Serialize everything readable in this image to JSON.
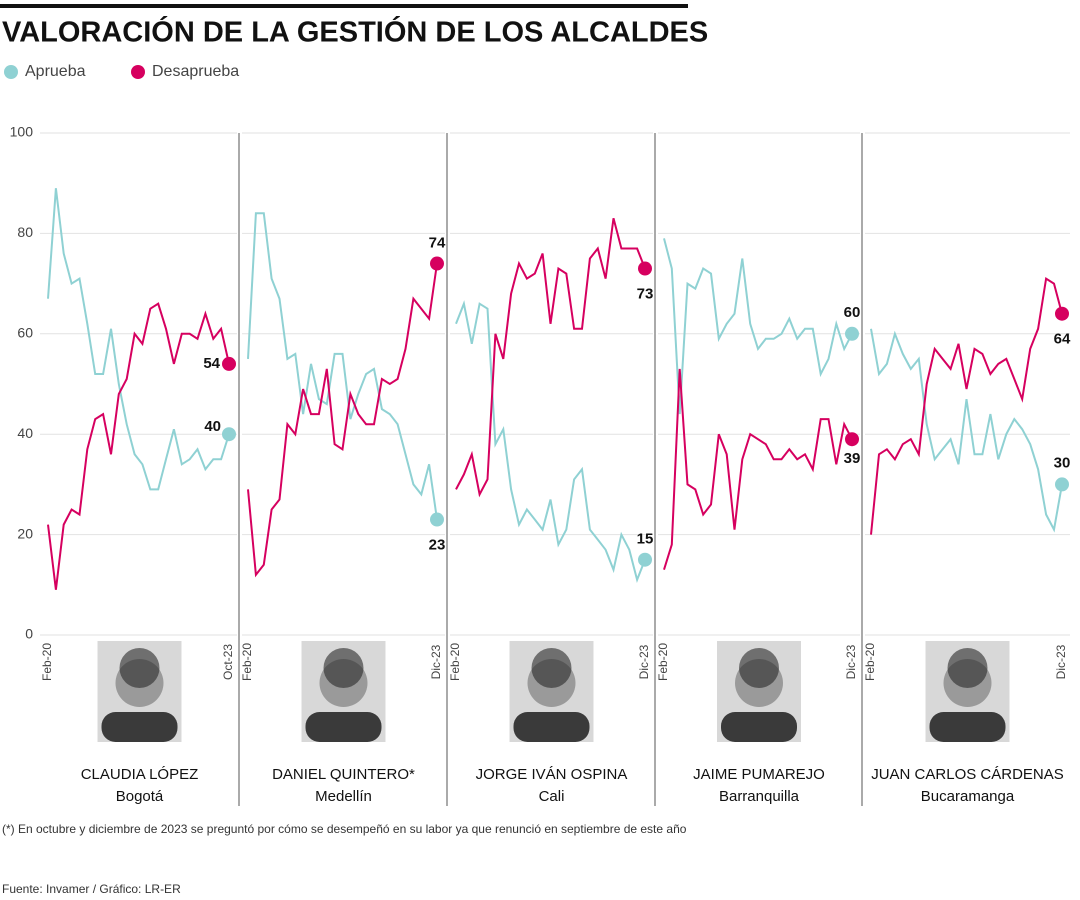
{
  "title": "VALORACIÓN DE LA GESTIÓN DE LOS ALCALDES",
  "footnote": "(*) En octubre y diciembre de 2023 se preguntó por cómo se desempeñó en su labor ya que renunció en septiembre de este año",
  "source": "Fuente: Invamer / Gráfico: LR-ER",
  "chart_data": [
    {
      "type": "line",
      "title": "CLAUDIA LÓPEZ",
      "subtitle": "Bogotá",
      "x": [
        "Feb-20",
        null,
        null,
        null,
        null,
        null,
        null,
        null,
        null,
        null,
        null,
        null,
        null,
        null,
        null,
        null,
        null,
        null,
        null,
        null,
        null,
        null,
        null,
        "Oct-23"
      ],
      "series": [
        {
          "name": "Aprueba",
          "color": "#8fd1d3",
          "values": [
            67,
            89,
            76,
            70,
            71,
            62,
            52,
            52,
            61,
            50,
            42,
            36,
            34,
            29,
            29,
            35,
            41,
            34,
            35,
            37,
            33,
            35,
            35,
            40
          ]
        },
        {
          "name": "Desaprueba",
          "color": "#d6005f",
          "values": [
            22,
            9,
            22,
            25,
            24,
            37,
            43,
            44,
            36,
            48,
            51,
            60,
            58,
            65,
            66,
            61,
            54,
            60,
            60,
            59,
            64,
            59,
            61,
            54
          ]
        }
      ],
      "ylim": [
        0,
        100
      ],
      "yticks": [
        0,
        20,
        40,
        60,
        80,
        100
      ],
      "grid": true
    },
    {
      "type": "line",
      "title": "DANIEL QUINTERO*",
      "subtitle": "Medellín",
      "x": [
        "Feb-20",
        null,
        null,
        null,
        null,
        null,
        null,
        null,
        null,
        null,
        null,
        null,
        null,
        null,
        null,
        null,
        null,
        null,
        null,
        null,
        null,
        null,
        null,
        null,
        "Dic-23"
      ],
      "series": [
        {
          "name": "Aprueba",
          "color": "#8fd1d3",
          "values": [
            55,
            84,
            84,
            71,
            67,
            55,
            56,
            44,
            54,
            47,
            46,
            56,
            56,
            43,
            48,
            52,
            53,
            45,
            44,
            42,
            36,
            30,
            28,
            34,
            23
          ]
        },
        {
          "name": "Desaprueba",
          "color": "#d6005f",
          "values": [
            29,
            12,
            14,
            25,
            27,
            42,
            40,
            49,
            44,
            44,
            53,
            38,
            37,
            48,
            44,
            42,
            42,
            51,
            50,
            51,
            57,
            67,
            65,
            63,
            74
          ]
        }
      ],
      "ylim": [
        0,
        100
      ],
      "yticks": [
        0,
        20,
        40,
        60,
        80,
        100
      ],
      "grid": true
    },
    {
      "type": "line",
      "title": "JORGE IVÁN OSPINA",
      "subtitle": "Cali",
      "x": [
        "Feb-20",
        null,
        null,
        null,
        null,
        null,
        null,
        null,
        null,
        null,
        null,
        null,
        null,
        null,
        null,
        null,
        null,
        null,
        null,
        null,
        null,
        null,
        null,
        null,
        "Dic-23"
      ],
      "series": [
        {
          "name": "Aprueba",
          "color": "#8fd1d3",
          "values": [
            62,
            66,
            58,
            66,
            65,
            38,
            41,
            29,
            22,
            25,
            23,
            21,
            27,
            18,
            21,
            31,
            33,
            21,
            19,
            17,
            13,
            20,
            17,
            11,
            15
          ]
        },
        {
          "name": "Desaprueba",
          "color": "#d6005f",
          "values": [
            29,
            32,
            36,
            28,
            31,
            60,
            55,
            68,
            74,
            71,
            72,
            76,
            62,
            73,
            72,
            61,
            61,
            75,
            77,
            71,
            83,
            77,
            77,
            77,
            73
          ]
        }
      ],
      "ylim": [
        0,
        100
      ],
      "yticks": [
        0,
        20,
        40,
        60,
        80,
        100
      ],
      "grid": true
    },
    {
      "type": "line",
      "title": "JAIME PUMAREJO",
      "subtitle": "Barranquilla",
      "x": [
        "Feb-20",
        null,
        null,
        null,
        null,
        null,
        null,
        null,
        null,
        null,
        null,
        null,
        null,
        null,
        null,
        null,
        null,
        null,
        null,
        null,
        null,
        null,
        null,
        null,
        "Dic-23"
      ],
      "series": [
        {
          "name": "Aprueba",
          "color": "#8fd1d3",
          "values": [
            79,
            73,
            44,
            70,
            69,
            73,
            72,
            59,
            62,
            64,
            75,
            62,
            57,
            59,
            59,
            60,
            63,
            59,
            61,
            61,
            52,
            55,
            62,
            57,
            60
          ]
        },
        {
          "name": "Desaprueba",
          "color": "#d6005f",
          "values": [
            13,
            18,
            53,
            30,
            29,
            24,
            26,
            40,
            36,
            21,
            35,
            40,
            39,
            38,
            35,
            35,
            37,
            35,
            36,
            33,
            43,
            43,
            34,
            42,
            39
          ]
        }
      ],
      "ylim": [
        0,
        100
      ],
      "yticks": [
        0,
        20,
        40,
        60,
        80,
        100
      ],
      "grid": true
    },
    {
      "type": "line",
      "title": "JUAN CARLOS CÁRDENAS",
      "subtitle": "Bucaramanga",
      "x": [
        "Feb-20",
        null,
        null,
        null,
        null,
        null,
        null,
        null,
        null,
        null,
        null,
        null,
        null,
        null,
        null,
        null,
        null,
        null,
        null,
        null,
        null,
        null,
        null,
        null,
        "Dic-23"
      ],
      "series": [
        {
          "name": "Aprueba",
          "color": "#8fd1d3",
          "values": [
            61,
            52,
            54,
            60,
            56,
            53,
            55,
            42,
            35,
            37,
            39,
            34,
            47,
            36,
            36,
            44,
            35,
            40,
            43,
            41,
            38,
            33,
            24,
            21,
            30
          ]
        },
        {
          "name": "Desaprueba",
          "color": "#d6005f",
          "values": [
            20,
            36,
            37,
            35,
            38,
            39,
            36,
            50,
            57,
            55,
            53,
            58,
            49,
            57,
            56,
            52,
            54,
            55,
            51,
            47,
            57,
            61,
            71,
            70,
            64
          ]
        }
      ],
      "ylim": [
        0,
        100
      ],
      "yticks": [
        0,
        20,
        40,
        60,
        80,
        100
      ],
      "grid": true
    }
  ]
}
